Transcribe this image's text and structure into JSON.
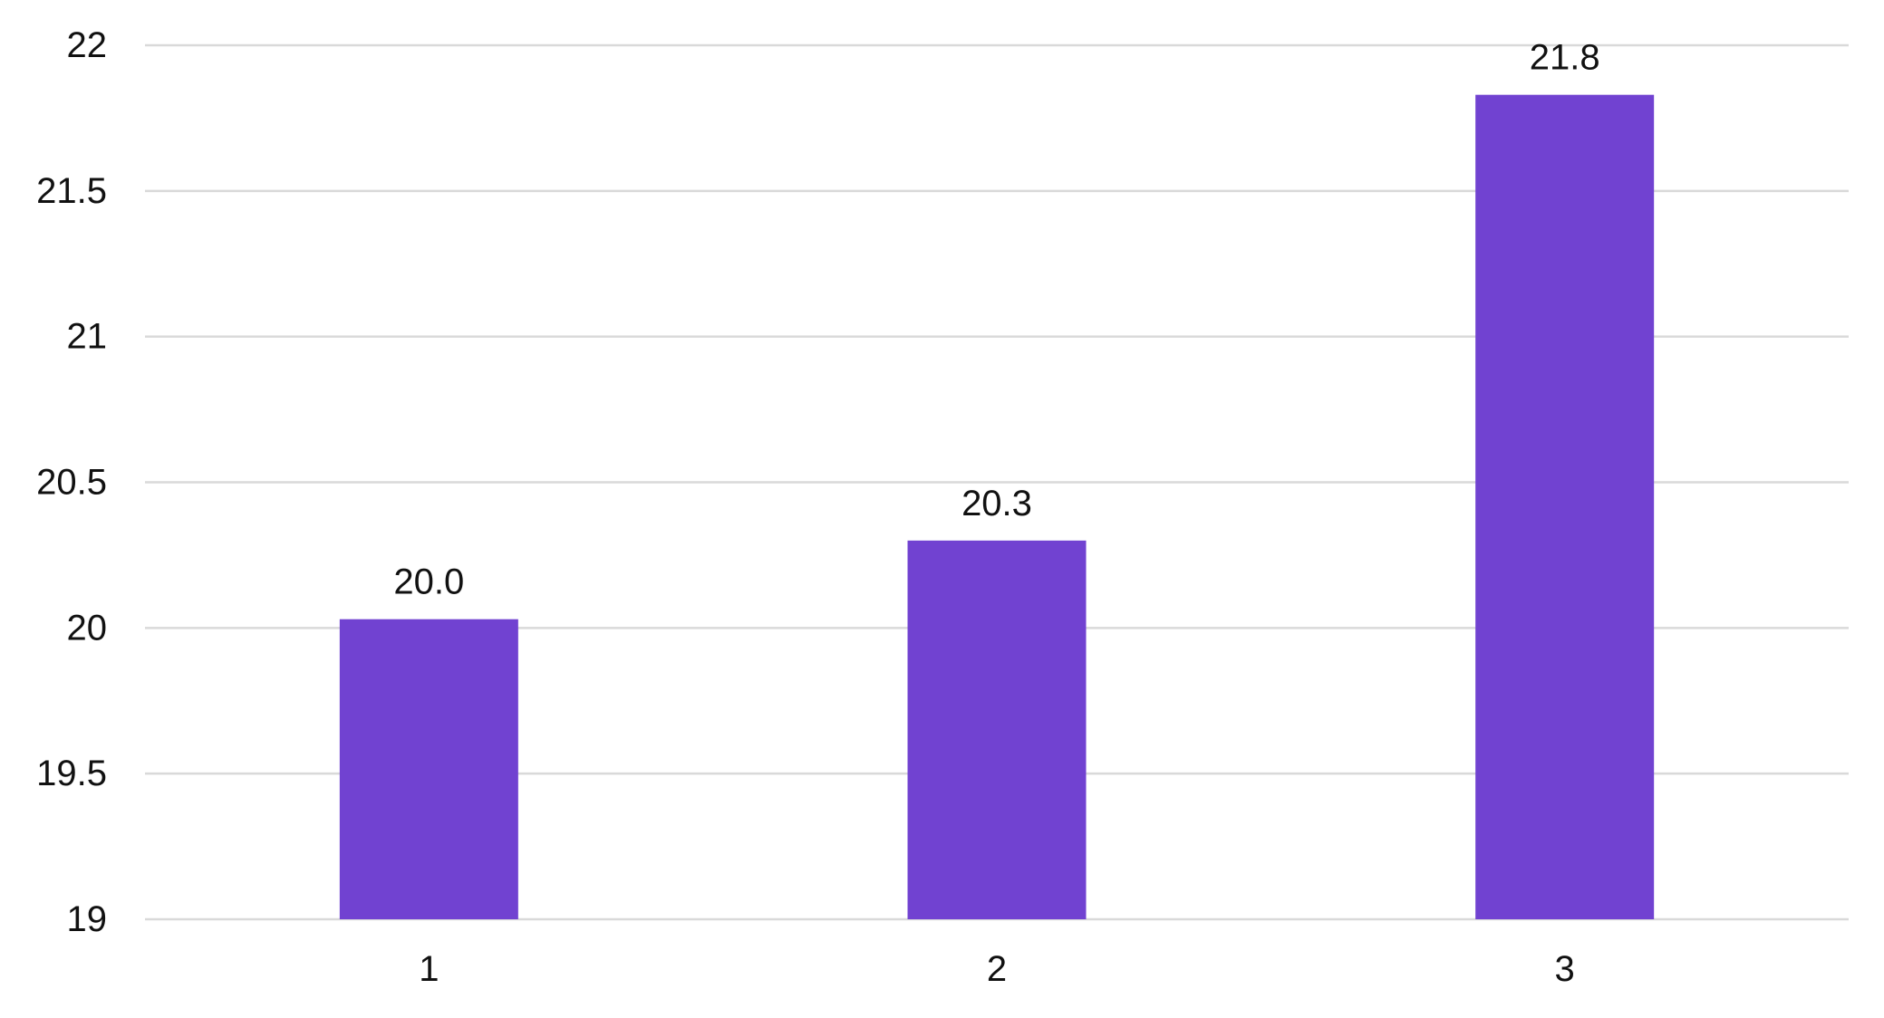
{
  "chart_data": {
    "type": "bar",
    "categories": [
      "1",
      "2",
      "3"
    ],
    "values": [
      20.03,
      20.3,
      21.83
    ],
    "data_labels": [
      "20.0",
      "20.3",
      "21.8"
    ],
    "ylim": [
      19,
      22
    ],
    "yticks": [
      "19",
      "19.5",
      "20",
      "20.5",
      "21",
      "21.5",
      "22"
    ],
    "title": "",
    "xlabel": "",
    "ylabel": "",
    "grid": true,
    "bar_color": "#7142d1",
    "grid_color": "#d9d9d9"
  }
}
